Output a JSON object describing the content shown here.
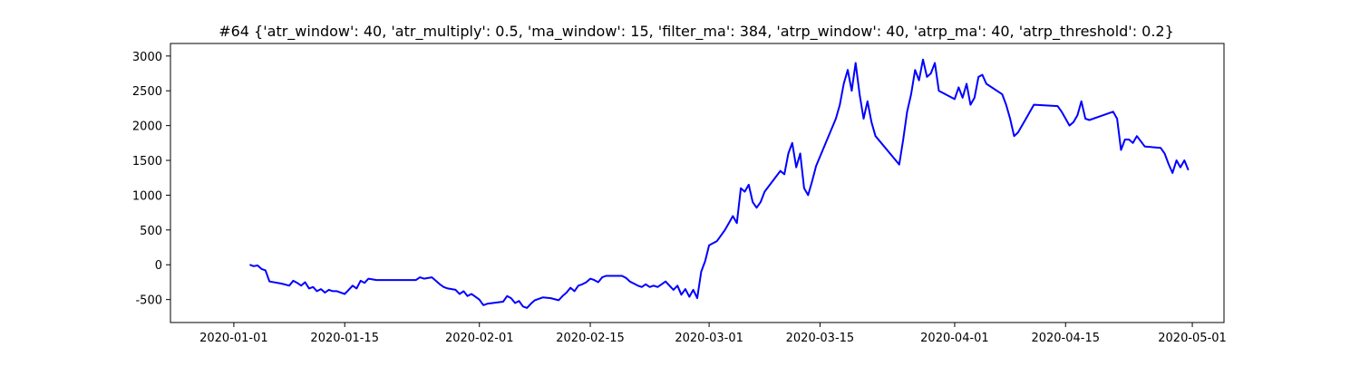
{
  "chart_data": {
    "type": "line",
    "title": "#64 {'atr_window': 40, 'atr_multiply': 0.5, 'ma_window': 15, 'filter_ma': 384, 'atrp_window': 40, 'atrp_ma': 40, 'atrp_threshold': 0.2}",
    "xlabel": "",
    "ylabel": "",
    "x_tick_labels": [
      "2020-01-01",
      "2020-01-15",
      "2020-02-01",
      "2020-02-15",
      "2020-03-01",
      "2020-03-15",
      "2020-04-01",
      "2020-04-15",
      "2020-05-01"
    ],
    "y_ticks": [
      -500,
      0,
      500,
      1000,
      1500,
      2000,
      2500,
      3000
    ],
    "xlim": [
      "2019-12-24",
      "2020-05-05"
    ],
    "ylim": [
      -830,
      3180
    ],
    "grid": false,
    "legend": "none",
    "line_color": "#0000ff",
    "series": [
      {
        "points": [
          [
            "2020-01-03",
            0
          ],
          [
            "2020-01-03 12:00",
            -20
          ],
          [
            "2020-01-04",
            -10
          ],
          [
            "2020-01-04 12:00",
            -60
          ],
          [
            "2020-01-05",
            -80
          ],
          [
            "2020-01-05 12:00",
            -240
          ],
          [
            "2020-01-07",
            -270
          ],
          [
            "2020-01-08",
            -300
          ],
          [
            "2020-01-08 12:00",
            -230
          ],
          [
            "2020-01-09",
            -260
          ],
          [
            "2020-01-09 12:00",
            -300
          ],
          [
            "2020-01-10",
            -250
          ],
          [
            "2020-01-10 12:00",
            -340
          ],
          [
            "2020-01-11",
            -320
          ],
          [
            "2020-01-11 12:00",
            -380
          ],
          [
            "2020-01-12",
            -350
          ],
          [
            "2020-01-12 12:00",
            -400
          ],
          [
            "2020-01-13",
            -360
          ],
          [
            "2020-01-13 12:00",
            -380
          ],
          [
            "2020-01-14",
            -380
          ],
          [
            "2020-01-15",
            -420
          ],
          [
            "2020-01-15 12:00",
            -360
          ],
          [
            "2020-01-16",
            -300
          ],
          [
            "2020-01-16 12:00",
            -340
          ],
          [
            "2020-01-17",
            -230
          ],
          [
            "2020-01-17 12:00",
            -260
          ],
          [
            "2020-01-18",
            -200
          ],
          [
            "2020-01-19",
            -220
          ],
          [
            "2020-01-20",
            -220
          ],
          [
            "2020-01-24",
            -220
          ],
          [
            "2020-01-24 12:00",
            -180
          ],
          [
            "2020-01-25",
            -200
          ],
          [
            "2020-01-26",
            -180
          ],
          [
            "2020-01-26 12:00",
            -230
          ],
          [
            "2020-01-27",
            -280
          ],
          [
            "2020-01-27 12:00",
            -320
          ],
          [
            "2020-01-28",
            -340
          ],
          [
            "2020-01-29",
            -360
          ],
          [
            "2020-01-29 12:00",
            -420
          ],
          [
            "2020-01-30",
            -380
          ],
          [
            "2020-01-30 12:00",
            -450
          ],
          [
            "2020-01-31",
            -420
          ],
          [
            "2020-01-31 12:00",
            -460
          ],
          [
            "2020-02-01",
            -500
          ],
          [
            "2020-02-01 12:00",
            -580
          ],
          [
            "2020-02-02",
            -560
          ],
          [
            "2020-02-04",
            -530
          ],
          [
            "2020-02-04 12:00",
            -450
          ],
          [
            "2020-02-05",
            -480
          ],
          [
            "2020-02-05 12:00",
            -550
          ],
          [
            "2020-02-06",
            -520
          ],
          [
            "2020-02-06 12:00",
            -600
          ],
          [
            "2020-02-07",
            -620
          ],
          [
            "2020-02-07 12:00",
            -560
          ],
          [
            "2020-02-08",
            -510
          ],
          [
            "2020-02-09",
            -470
          ],
          [
            "2020-02-10",
            -480
          ],
          [
            "2020-02-11",
            -510
          ],
          [
            "2020-02-11 12:00",
            -450
          ],
          [
            "2020-02-12",
            -400
          ],
          [
            "2020-02-12 12:00",
            -330
          ],
          [
            "2020-02-13",
            -380
          ],
          [
            "2020-02-13 12:00",
            -300
          ],
          [
            "2020-02-14",
            -280
          ],
          [
            "2020-02-14 12:00",
            -250
          ],
          [
            "2020-02-15",
            -200
          ],
          [
            "2020-02-15 12:00",
            -220
          ],
          [
            "2020-02-16",
            -250
          ],
          [
            "2020-02-16 12:00",
            -180
          ],
          [
            "2020-02-17",
            -160
          ],
          [
            "2020-02-19",
            -160
          ],
          [
            "2020-02-19 12:00",
            -190
          ],
          [
            "2020-02-20",
            -240
          ],
          [
            "2020-02-20 12:00",
            -270
          ],
          [
            "2020-02-21",
            -300
          ],
          [
            "2020-02-21 12:00",
            -320
          ],
          [
            "2020-02-22",
            -280
          ],
          [
            "2020-02-22 12:00",
            -320
          ],
          [
            "2020-02-23",
            -300
          ],
          [
            "2020-02-23 12:00",
            -320
          ],
          [
            "2020-02-24",
            -280
          ],
          [
            "2020-02-24 12:00",
            -240
          ],
          [
            "2020-02-25",
            -300
          ],
          [
            "2020-02-25 12:00",
            -360
          ],
          [
            "2020-02-26",
            -300
          ],
          [
            "2020-02-26 12:00",
            -430
          ],
          [
            "2020-02-27",
            -350
          ],
          [
            "2020-02-27 12:00",
            -460
          ],
          [
            "2020-02-28",
            -360
          ],
          [
            "2020-02-28 12:00",
            -480
          ],
          [
            "2020-02-29",
            -100
          ],
          [
            "2020-02-29 12:00",
            50
          ],
          [
            "2020-03-01",
            280
          ],
          [
            "2020-03-02",
            340
          ],
          [
            "2020-03-03",
            500
          ],
          [
            "2020-03-03 12:00",
            600
          ],
          [
            "2020-03-04",
            700
          ],
          [
            "2020-03-04 12:00",
            600
          ],
          [
            "2020-03-05",
            1100
          ],
          [
            "2020-03-05 12:00",
            1050
          ],
          [
            "2020-03-06",
            1150
          ],
          [
            "2020-03-06 12:00",
            900
          ],
          [
            "2020-03-07",
            820
          ],
          [
            "2020-03-07 12:00",
            900
          ],
          [
            "2020-03-08",
            1050
          ],
          [
            "2020-03-10",
            1350
          ],
          [
            "2020-03-10 12:00",
            1300
          ],
          [
            "2020-03-11",
            1600
          ],
          [
            "2020-03-11 12:00",
            1750
          ],
          [
            "2020-03-12",
            1400
          ],
          [
            "2020-03-12 12:00",
            1600
          ],
          [
            "2020-03-13",
            1100
          ],
          [
            "2020-03-13 12:00",
            1000
          ],
          [
            "2020-03-14",
            1200
          ],
          [
            "2020-03-14 12:00",
            1420
          ],
          [
            "2020-03-17",
            2100
          ],
          [
            "2020-03-17 12:00",
            2300
          ],
          [
            "2020-03-18",
            2600
          ],
          [
            "2020-03-18 12:00",
            2800
          ],
          [
            "2020-03-19",
            2500
          ],
          [
            "2020-03-19 12:00",
            2900
          ],
          [
            "2020-03-20",
            2450
          ],
          [
            "2020-03-20 12:00",
            2100
          ],
          [
            "2020-03-21",
            2350
          ],
          [
            "2020-03-21 12:00",
            2050
          ],
          [
            "2020-03-22",
            1850
          ],
          [
            "2020-03-25",
            1440
          ],
          [
            "2020-03-25 12:00",
            1800
          ],
          [
            "2020-03-26",
            2200
          ],
          [
            "2020-03-26 12:00",
            2450
          ],
          [
            "2020-03-27",
            2800
          ],
          [
            "2020-03-27 12:00",
            2650
          ],
          [
            "2020-03-28",
            2950
          ],
          [
            "2020-03-28 12:00",
            2700
          ],
          [
            "2020-03-29",
            2750
          ],
          [
            "2020-03-29 12:00",
            2900
          ],
          [
            "2020-03-30",
            2500
          ],
          [
            "2020-04-01",
            2380
          ],
          [
            "2020-04-01 12:00",
            2550
          ],
          [
            "2020-04-02",
            2400
          ],
          [
            "2020-04-02 12:00",
            2600
          ],
          [
            "2020-04-03",
            2300
          ],
          [
            "2020-04-03 12:00",
            2400
          ],
          [
            "2020-04-04",
            2700
          ],
          [
            "2020-04-04 12:00",
            2730
          ],
          [
            "2020-04-05",
            2600
          ],
          [
            "2020-04-07",
            2450
          ],
          [
            "2020-04-07 12:00",
            2300
          ],
          [
            "2020-04-08",
            2100
          ],
          [
            "2020-04-08 12:00",
            1850
          ],
          [
            "2020-04-09",
            1900
          ],
          [
            "2020-04-09 12:00",
            2000
          ],
          [
            "2020-04-10",
            2100
          ],
          [
            "2020-04-11",
            2300
          ],
          [
            "2020-04-14",
            2280
          ],
          [
            "2020-04-14 12:00",
            2200
          ],
          [
            "2020-04-15",
            2100
          ],
          [
            "2020-04-15 12:00",
            2000
          ],
          [
            "2020-04-16",
            2050
          ],
          [
            "2020-04-16 12:00",
            2150
          ],
          [
            "2020-04-17",
            2350
          ],
          [
            "2020-04-17 12:00",
            2100
          ],
          [
            "2020-04-18",
            2080
          ],
          [
            "2020-04-21",
            2200
          ],
          [
            "2020-04-21 12:00",
            2100
          ],
          [
            "2020-04-22",
            1650
          ],
          [
            "2020-04-22 12:00",
            1800
          ],
          [
            "2020-04-23",
            1800
          ],
          [
            "2020-04-23 12:00",
            1750
          ],
          [
            "2020-04-24",
            1850
          ],
          [
            "2020-04-25",
            1700
          ],
          [
            "2020-04-27",
            1680
          ],
          [
            "2020-04-27 12:00",
            1600
          ],
          [
            "2020-04-28",
            1450
          ],
          [
            "2020-04-28 12:00",
            1320
          ],
          [
            "2020-04-29",
            1500
          ],
          [
            "2020-04-29 12:00",
            1400
          ],
          [
            "2020-04-30",
            1500
          ],
          [
            "2020-04-30 12:00",
            1360
          ]
        ]
      }
    ]
  }
}
